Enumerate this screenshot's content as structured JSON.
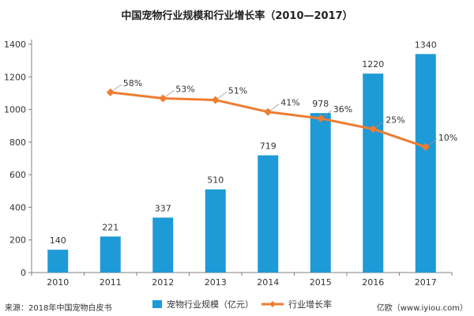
{
  "colors": {
    "bar": "#1e9ad6",
    "line": "#ee7d31",
    "axis": "#808080",
    "grid": "#d9d9d9",
    "text": "#333333"
  },
  "chart_data": {
    "type": "bar+line",
    "title": "中国宠物行业规模和行业增长率（2010—2017）",
    "categories": [
      "2010",
      "2011",
      "2012",
      "2013",
      "2014",
      "2015",
      "2016",
      "2017"
    ],
    "ylim": [
      0,
      1400
    ],
    "yticks": [
      "0",
      "200",
      "400",
      "600",
      "800",
      "1000",
      "1200",
      "1400"
    ],
    "grid": false,
    "series": [
      {
        "name": "宠物行业规模（亿元）",
        "type": "bar",
        "values": [
          140,
          221,
          337,
          510,
          719,
          978,
          1220,
          1340
        ],
        "labels": [
          "140",
          "221",
          "337",
          "510",
          "719",
          "978",
          "1220",
          "1340"
        ]
      },
      {
        "name": "行业增长率",
        "type": "line",
        "x": [
          "2011",
          "2012",
          "2013",
          "2014",
          "2015",
          "2016",
          "2017"
        ],
        "values": [
          1105,
          1068,
          1058,
          985,
          945,
          880,
          770
        ],
        "labels": [
          "58%",
          "53%",
          "51%",
          "41%",
          "36%",
          "25%",
          "10%"
        ]
      }
    ],
    "legend_position": "bottom",
    "source": "来源：2018年中国宠物白皮书",
    "credit": "亿欧（www.iyiou.com）"
  }
}
